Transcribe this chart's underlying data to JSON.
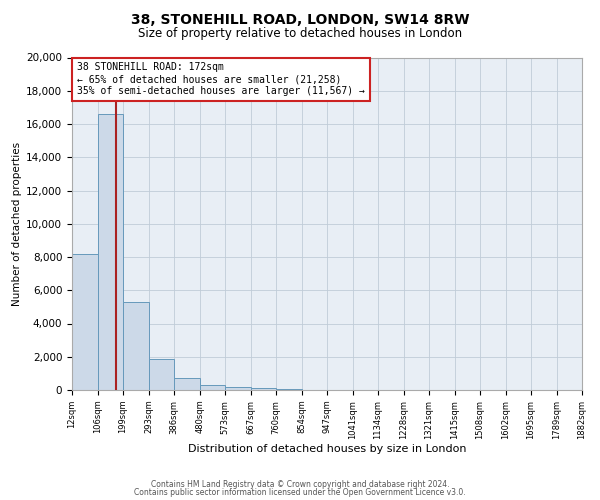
{
  "title": "38, STONEHILL ROAD, LONDON, SW14 8RW",
  "subtitle": "Size of property relative to detached houses in London",
  "xlabel": "Distribution of detached houses by size in London",
  "ylabel": "Number of detached properties",
  "bar_color": "#ccd9e8",
  "bar_edge_color": "#6699bb",
  "background_color": "#e8eef5",
  "grid_color": "#c0ccd8",
  "annotation_line1": "38 STONEHILL ROAD: 172sqm",
  "annotation_line2": "← 65% of detached houses are smaller (21,258)",
  "annotation_line3": "35% of semi-detached houses are larger (11,567) →",
  "property_line_color": "#aa2222",
  "property_value": 172,
  "bin_edges": [
    12,
    106,
    199,
    293,
    386,
    480,
    573,
    667,
    760,
    854,
    947,
    1041,
    1134,
    1228,
    1321,
    1415,
    1508,
    1602,
    1695,
    1789,
    1882
  ],
  "bin_counts": [
    8200,
    16600,
    5300,
    1850,
    750,
    280,
    180,
    120,
    90,
    0,
    0,
    0,
    0,
    0,
    0,
    0,
    0,
    0,
    0,
    0
  ],
  "ylim": [
    0,
    20000
  ],
  "yticks": [
    0,
    2000,
    4000,
    6000,
    8000,
    10000,
    12000,
    14000,
    16000,
    18000,
    20000
  ],
  "footer_line1": "Contains HM Land Registry data © Crown copyright and database right 2024.",
  "footer_line2": "Contains public sector information licensed under the Open Government Licence v3.0."
}
